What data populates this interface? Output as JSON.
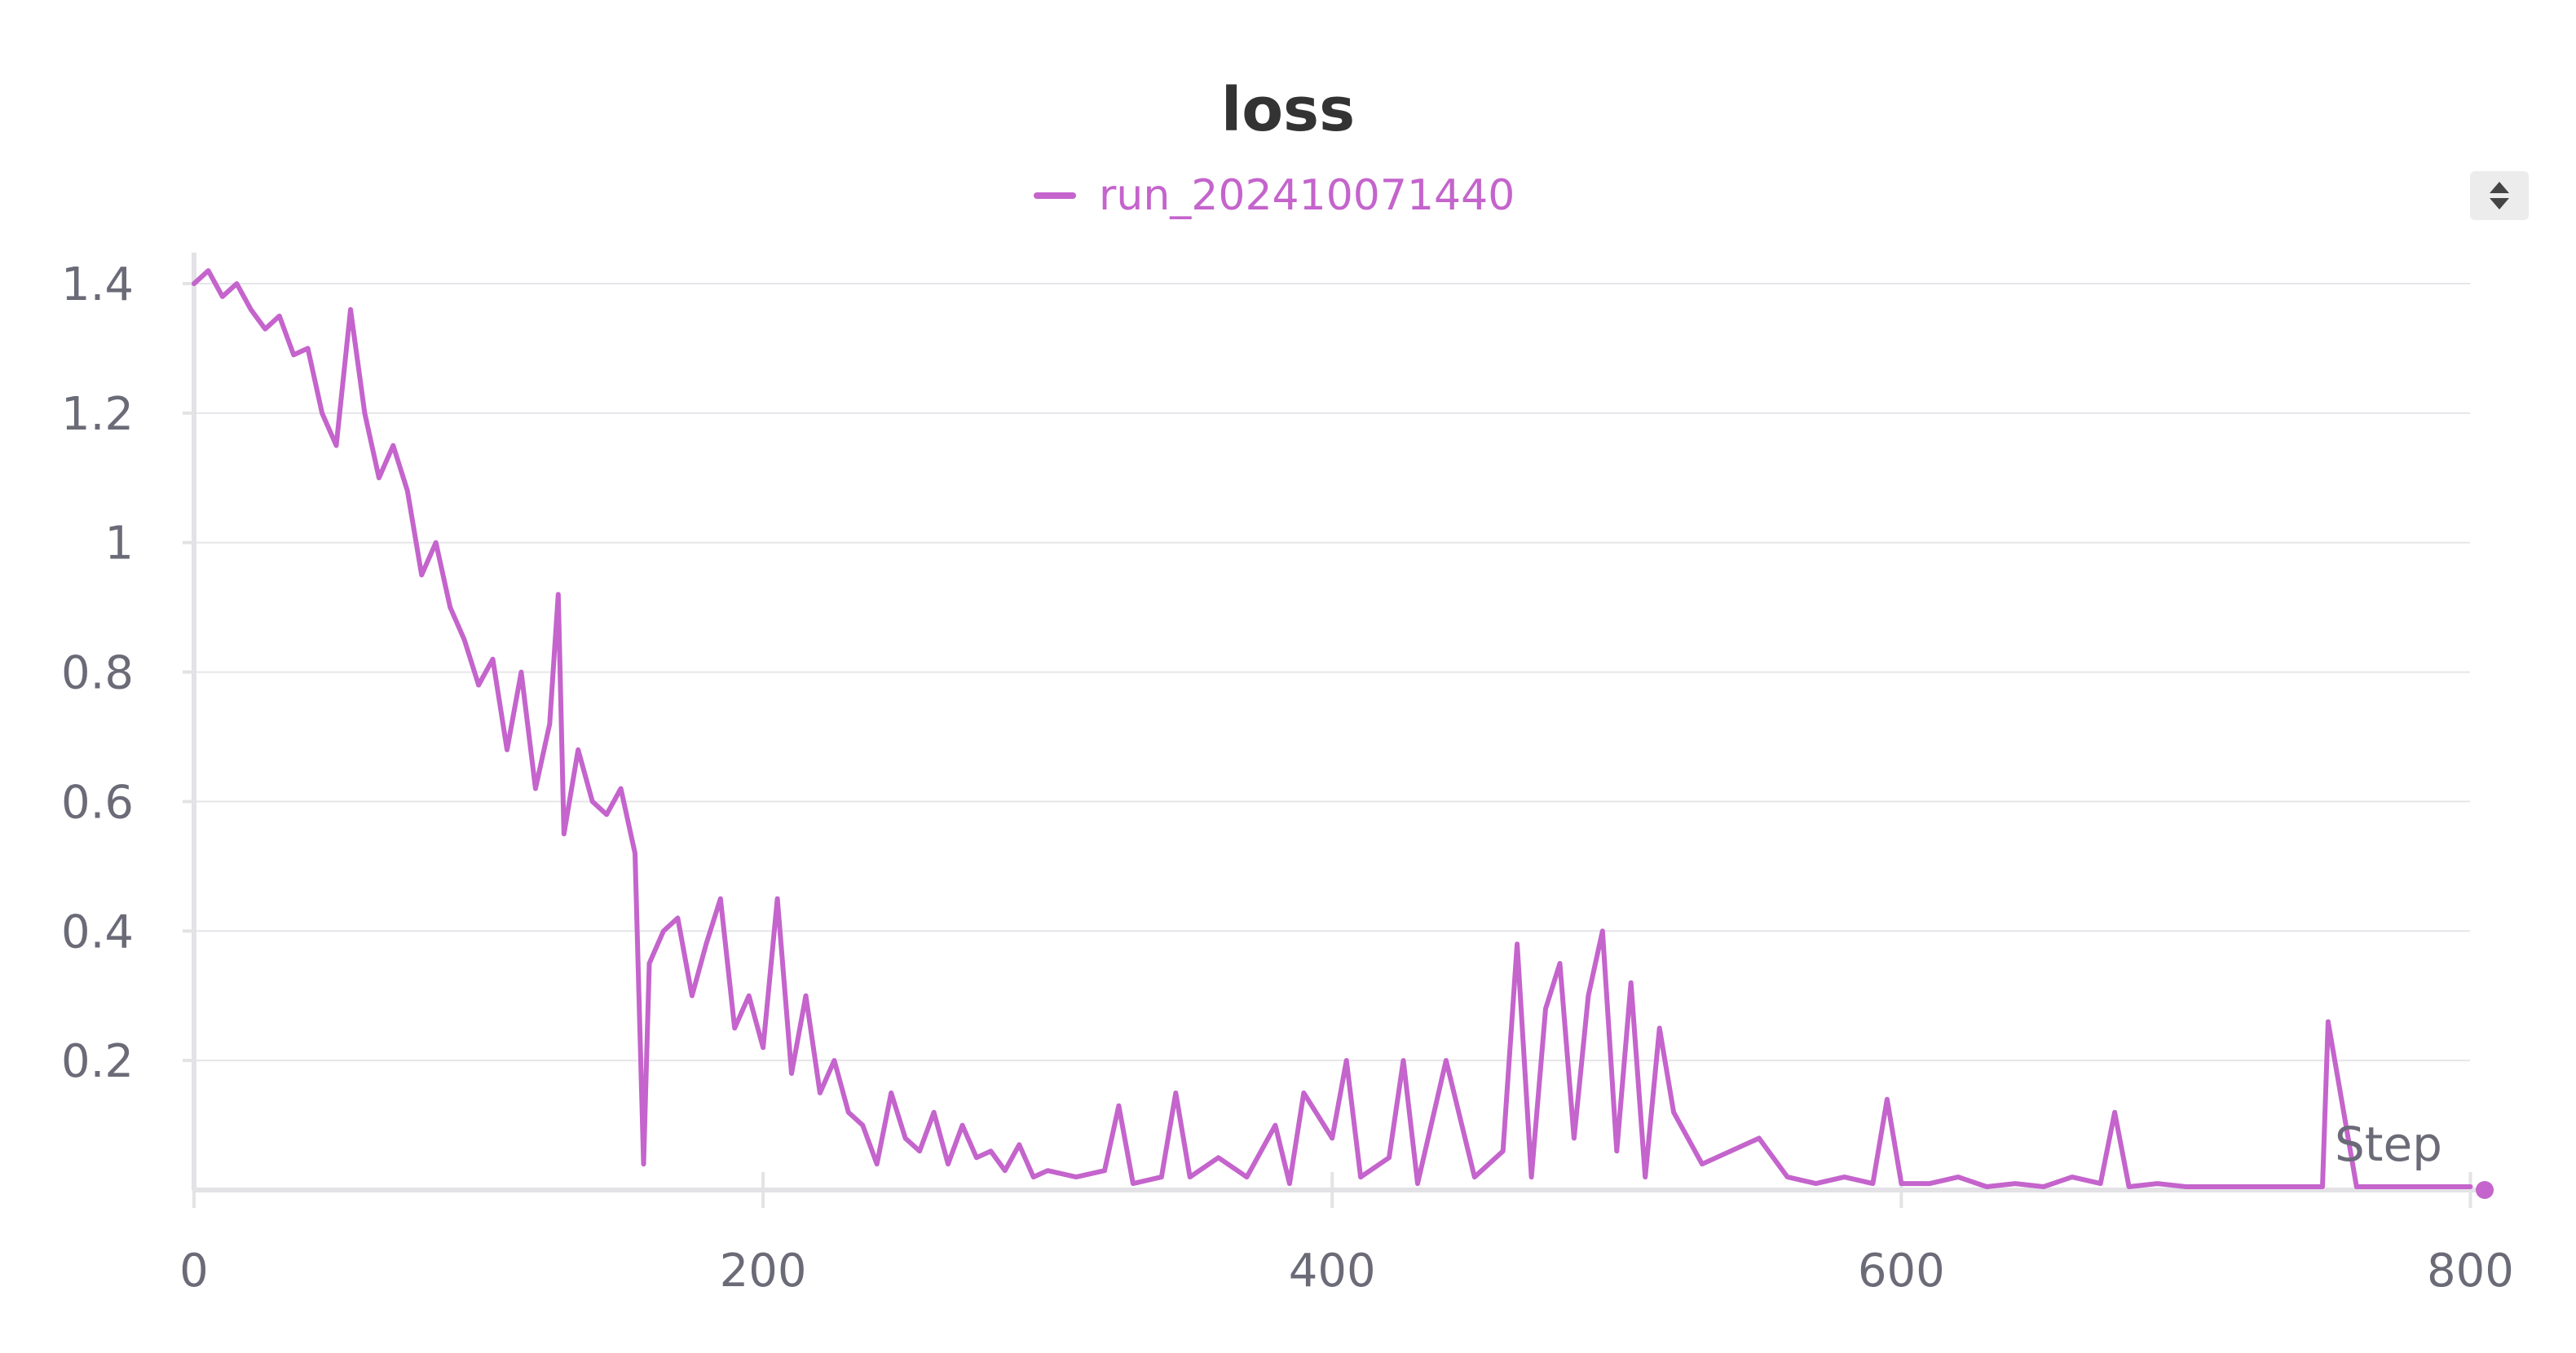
{
  "chart_data": {
    "type": "line",
    "title": "loss",
    "xlabel": "Step",
    "ylabel": "",
    "xlim": [
      0,
      800
    ],
    "ylim": [
      0,
      1.4
    ],
    "x_ticks": [
      0,
      200,
      400,
      600,
      800
    ],
    "x_tick_labels": [
      "0",
      "200",
      "400",
      "600",
      "800"
    ],
    "y_ticks": [
      0.2,
      0.4,
      0.6,
      0.8,
      1,
      1.2,
      1.4
    ],
    "y_tick_labels": [
      "0.2",
      "0.4",
      "0.6",
      "0.8",
      "1",
      "1.2",
      "1.4"
    ],
    "grid": true,
    "legend_position": "top-center",
    "series": [
      {
        "name": "run_202410071440",
        "color": "#c464cc",
        "x": [
          0,
          5,
          10,
          15,
          20,
          25,
          30,
          35,
          40,
          45,
          50,
          55,
          60,
          65,
          70,
          75,
          80,
          85,
          90,
          95,
          100,
          105,
          110,
          115,
          120,
          125,
          128,
          130,
          135,
          140,
          145,
          150,
          155,
          158,
          160,
          165,
          170,
          175,
          180,
          185,
          190,
          195,
          200,
          205,
          210,
          215,
          220,
          225,
          230,
          235,
          240,
          245,
          250,
          255,
          260,
          265,
          270,
          275,
          280,
          285,
          290,
          295,
          300,
          310,
          320,
          325,
          330,
          340,
          345,
          350,
          360,
          370,
          380,
          385,
          390,
          400,
          405,
          410,
          420,
          425,
          430,
          440,
          450,
          460,
          465,
          470,
          475,
          480,
          485,
          490,
          495,
          500,
          505,
          510,
          515,
          520,
          530,
          540,
          550,
          560,
          570,
          580,
          590,
          595,
          600,
          610,
          620,
          630,
          640,
          650,
          660,
          670,
          675,
          680,
          690,
          700,
          710,
          720,
          730,
          740,
          748,
          750,
          760,
          770,
          780,
          790,
          800
        ],
        "y": [
          1.4,
          1.42,
          1.38,
          1.4,
          1.36,
          1.33,
          1.35,
          1.29,
          1.3,
          1.2,
          1.15,
          1.36,
          1.2,
          1.1,
          1.15,
          1.08,
          0.95,
          1.0,
          0.9,
          0.85,
          0.78,
          0.82,
          0.68,
          0.8,
          0.62,
          0.72,
          0.92,
          0.55,
          0.68,
          0.6,
          0.58,
          0.62,
          0.52,
          0.04,
          0.35,
          0.4,
          0.42,
          0.3,
          0.38,
          0.45,
          0.25,
          0.3,
          0.22,
          0.45,
          0.18,
          0.3,
          0.15,
          0.2,
          0.12,
          0.1,
          0.04,
          0.15,
          0.08,
          0.06,
          0.12,
          0.04,
          0.1,
          0.05,
          0.06,
          0.03,
          0.07,
          0.02,
          0.03,
          0.02,
          0.03,
          0.13,
          0.01,
          0.02,
          0.15,
          0.02,
          0.05,
          0.02,
          0.1,
          0.01,
          0.15,
          0.08,
          0.2,
          0.02,
          0.05,
          0.2,
          0.01,
          0.2,
          0.02,
          0.06,
          0.38,
          0.02,
          0.28,
          0.35,
          0.08,
          0.3,
          0.4,
          0.06,
          0.32,
          0.02,
          0.25,
          0.12,
          0.04,
          0.06,
          0.08,
          0.02,
          0.01,
          0.02,
          0.01,
          0.14,
          0.01,
          0.01,
          0.02,
          0.005,
          0.01,
          0.005,
          0.02,
          0.01,
          0.12,
          0.005,
          0.01,
          0.005,
          0.005,
          0.005,
          0.005,
          0.005,
          0.005,
          0.26,
          0.005,
          0.005,
          0.005,
          0.005,
          0.005
        ]
      }
    ]
  }
}
